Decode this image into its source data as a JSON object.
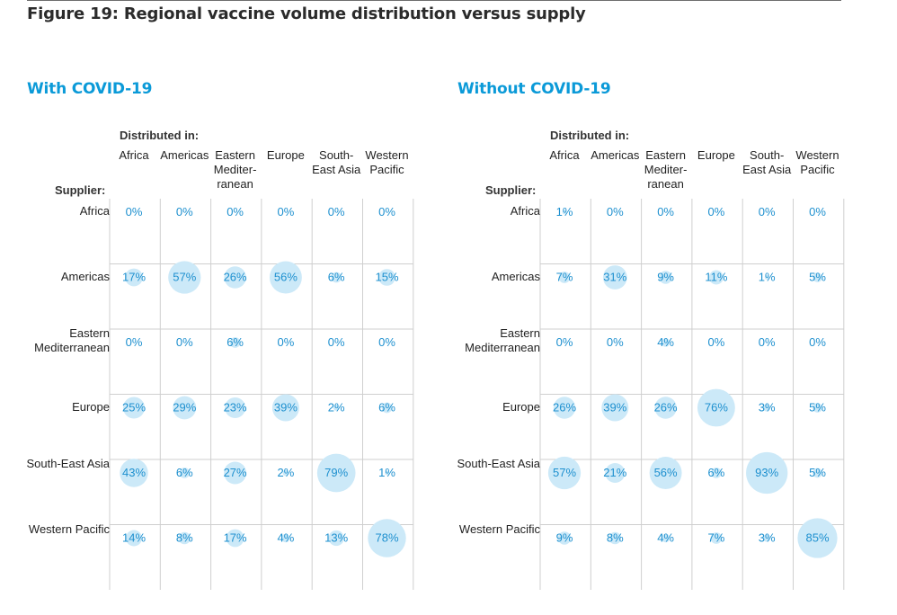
{
  "figure_title": "Figure 19: Regional vaccine volume distribution versus supply",
  "labels": {
    "distributed_in": "Distributed in:",
    "supplier": "Supplier:"
  },
  "colors": {
    "accent": "#0b9ad8",
    "bubble": "#cce9f8",
    "value_text": "#1e90cf",
    "grid": "#cfcfcf"
  },
  "chart_data": [
    {
      "type": "heatmap",
      "title": "With COVID-19",
      "columns": [
        "Africa",
        "Americas",
        "Eastern Mediter- ranean",
        "Europe",
        "South- East Asia",
        "Western Pacific"
      ],
      "rows": [
        "Africa",
        "Americas",
        "Eastern Mediterranean",
        "Europe",
        "South-East Asia",
        "Western Pacific"
      ],
      "values": [
        [
          0,
          0,
          0,
          0,
          0,
          0
        ],
        [
          17,
          57,
          26,
          56,
          6,
          15
        ],
        [
          0,
          0,
          6,
          0,
          0,
          0
        ],
        [
          25,
          29,
          23,
          39,
          2,
          6
        ],
        [
          43,
          6,
          27,
          2,
          79,
          1
        ],
        [
          14,
          8,
          17,
          4,
          13,
          78
        ]
      ],
      "unit": "%"
    },
    {
      "type": "heatmap",
      "title": "Without COVID-19",
      "columns": [
        "Africa",
        "Americas",
        "Eastern Mediter- ranean",
        "Europe",
        "South- East Asia",
        "Western Pacific"
      ],
      "rows": [
        "Africa",
        "Americas",
        "Eastern Mediterranean",
        "Europe",
        "South-East Asia",
        "Western Pacific"
      ],
      "values": [
        [
          1,
          0,
          0,
          0,
          0,
          0
        ],
        [
          7,
          31,
          9,
          11,
          1,
          5
        ],
        [
          0,
          0,
          4,
          0,
          0,
          0
        ],
        [
          26,
          39,
          26,
          76,
          3,
          5
        ],
        [
          57,
          21,
          56,
          6,
          93,
          5
        ],
        [
          9,
          8,
          4,
          7,
          3,
          85
        ]
      ],
      "unit": "%"
    }
  ]
}
